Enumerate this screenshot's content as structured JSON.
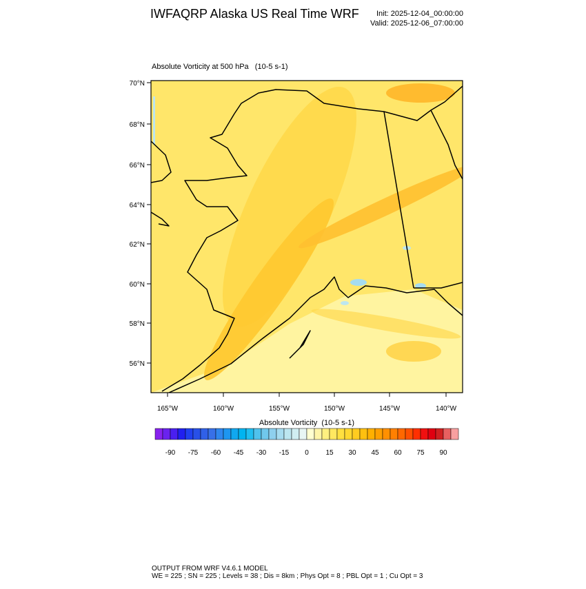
{
  "header": {
    "title": "IWFAQRP Alaska US Real Time WRF",
    "init": "Init: 2025-12-04_00:00:00",
    "valid": "Valid: 2025-12-06_07:00:00"
  },
  "map": {
    "subtitle": "Absolute Vorticity at 500 hPa   (10-5 s-1)",
    "lat_labels": [
      "70°N",
      "68°N",
      "66°N",
      "64°N",
      "62°N",
      "60°N",
      "58°N",
      "56°N"
    ],
    "lon_labels": [
      "165°W",
      "160°W",
      "155°W",
      "150°W",
      "145°W",
      "140°W"
    ]
  },
  "colorbar": {
    "title": "Absolute Vorticity  (10-5 s-1)",
    "range": [
      -100,
      100
    ],
    "labels": [
      -90,
      -75,
      -60,
      -45,
      -30,
      -15,
      0,
      15,
      30,
      45,
      60,
      75,
      90
    ],
    "colors": [
      "#8822ee",
      "#6a22ee",
      "#4a1ff0",
      "#2020f0",
      "#2040f0",
      "#2850e8",
      "#3060e8",
      "#3870e8",
      "#2f86ee",
      "#1e96f0",
      "#10a8f0",
      "#00b4f0",
      "#20bef0",
      "#50c2ec",
      "#70c8ec",
      "#8ed0ee",
      "#a6dcf0",
      "#bce6f0",
      "#d0eef2",
      "#e8f6f4",
      "#ffffd0",
      "#fff5a8",
      "#fff080",
      "#ffe860",
      "#ffe040",
      "#ffd830",
      "#ffcc20",
      "#ffc010",
      "#ffb000",
      "#ffa000",
      "#ff9000",
      "#ff8000",
      "#ff6800",
      "#ff5000",
      "#ff3000",
      "#f01010",
      "#e00010",
      "#d02020",
      "#e86060",
      "#f8a0a0"
    ]
  },
  "footer": {
    "line1": "OUTPUT FROM WRF V4.6.1 MODEL",
    "line2": "WE = 225 ; SN = 225 ; Levels = 38 ; Dis = 8km ; Phys Opt = 8 ; PBL Opt = 1 ; Cu Opt = 3"
  }
}
